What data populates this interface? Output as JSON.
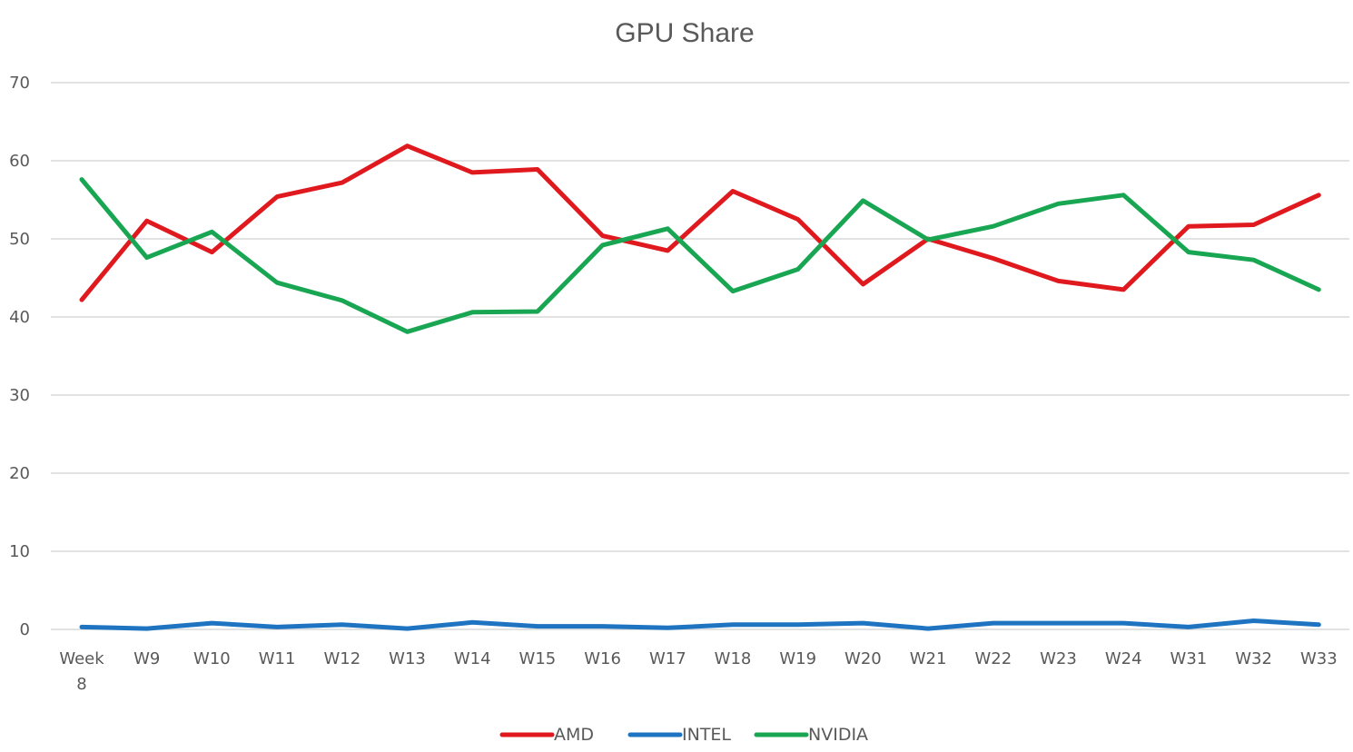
{
  "chart_data": {
    "type": "line",
    "title": "GPU Share",
    "xlabel": "",
    "ylabel": "",
    "categories": [
      "Week 8",
      "W9",
      "W10",
      "W11",
      "W12",
      "W13",
      "W14",
      "W15",
      "W16",
      "W17",
      "W18",
      "W19",
      "W20",
      "W21",
      "W22",
      "W23",
      "W24",
      "W31",
      "W32",
      "W33"
    ],
    "ylim": [
      0,
      70
    ],
    "yticks": [
      0,
      10,
      20,
      30,
      40,
      50,
      60,
      70
    ],
    "grid": true,
    "legend_position": "bottom",
    "series": [
      {
        "name": "AMD",
        "color": "#e0191e",
        "values": [
          42.2,
          52.3,
          48.3,
          55.4,
          57.2,
          61.9,
          58.5,
          58.9,
          50.4,
          48.5,
          56.1,
          52.5,
          44.2,
          50.0,
          47.5,
          44.6,
          43.5,
          51.6,
          51.8,
          55.6
        ]
      },
      {
        "name": "INTEL",
        "color": "#1f74c2",
        "values": [
          0.3,
          0.1,
          0.8,
          0.3,
          0.6,
          0.1,
          0.9,
          0.4,
          0.4,
          0.2,
          0.6,
          0.6,
          0.8,
          0.1,
          0.8,
          0.8,
          0.8,
          0.3,
          1.1,
          0.6
        ]
      },
      {
        "name": "NVIDIA",
        "color": "#19a652",
        "values": [
          57.6,
          47.6,
          50.9,
          44.4,
          42.1,
          38.1,
          40.6,
          40.7,
          49.2,
          51.3,
          43.3,
          46.1,
          54.9,
          49.9,
          51.6,
          54.5,
          55.6,
          48.3,
          47.3,
          43.5
        ]
      }
    ]
  }
}
